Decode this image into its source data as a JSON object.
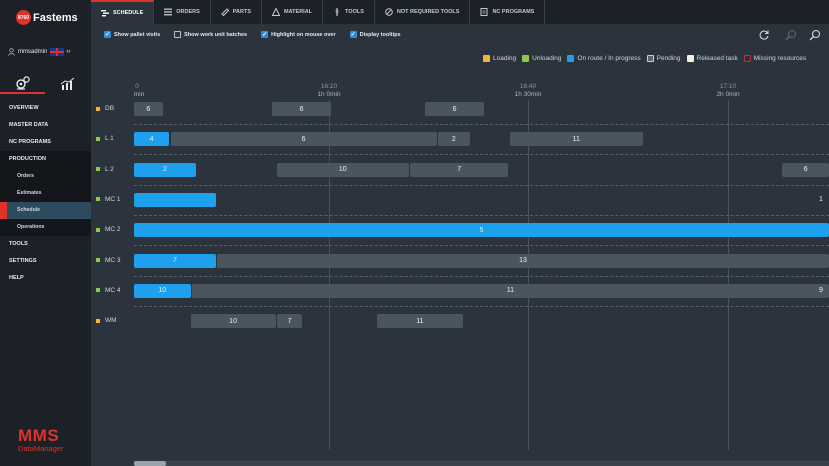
{
  "brand": {
    "badge": "8760",
    "name": "Fastems"
  },
  "user": {
    "name": "mmsadmin",
    "flag_arrow": "‹›"
  },
  "nav": {
    "overview": "OVERVIEW",
    "master_data": "MASTER DATA",
    "nc_programs": "NC PROGRAMS",
    "production": "PRODUCTION",
    "orders": "Orders",
    "estimates": "Estimates",
    "schedule": "Schedule",
    "operations": "Operations",
    "tools": "TOOLS",
    "settings": "SETTINGS",
    "help": "HELP"
  },
  "logo": {
    "big": "MMS",
    "small": "DataManager"
  },
  "tabs": [
    "SCHEDULE",
    "ORDERS",
    "PARTS",
    "MATERIAL",
    "TOOLS",
    "NOT REQUIRED TOOLS",
    "NC PROGRAMS"
  ],
  "options": {
    "show_pallet_visits": "Show pallet visits",
    "show_work_unit_batches": "Show work unit batches",
    "highlight_on_mouse_over": "Highlight on mouse over",
    "display_tooltips": "Display tooltips"
  },
  "legend": {
    "loading": "Loading",
    "unloading": "Unloading",
    "on_route": "On route / In progress",
    "pending": "Pending",
    "released": "Released task",
    "missing": "Missing resources"
  },
  "colors": {
    "loading": "#f2b53a",
    "unloading": "#8ec94c",
    "on_route": "#1ea0ec",
    "pending": "#7c8790",
    "released": "#f3efd9",
    "missing": "#c22e3a"
  },
  "timeline": {
    "start_label": "0",
    "start_dur": "min",
    "ticks": [
      {
        "time": "16:10",
        "dur": "1h 0min"
      },
      {
        "time": "16:40",
        "dur": "1h 30min"
      },
      {
        "time": "17:10",
        "dur": "2h 0min"
      }
    ]
  },
  "rows": [
    {
      "label": "DB",
      "dot": "#f2b53a",
      "bars": [
        {
          "text": "6",
          "kind": "grey",
          "start_min": 0,
          "end_min": 4.3
        },
        {
          "text": "6",
          "kind": "grey",
          "start_min": 20.7,
          "end_min": 29.7
        },
        {
          "text": "6",
          "kind": "grey",
          "start_min": 43.7,
          "end_min": 52.7
        }
      ]
    },
    {
      "label": "L 1",
      "dot": "#8ec94c",
      "bars": [
        {
          "text": "4",
          "kind": "blue",
          "start_min": 0,
          "end_min": 5.3
        },
        {
          "text": "6",
          "kind": "grey",
          "start_min": 5.5,
          "end_min": 45.5
        },
        {
          "text": "2",
          "kind": "grey",
          "start_min": 45.7,
          "end_min": 50.5
        },
        {
          "text": "11",
          "kind": "grey",
          "start_min": 56.5,
          "end_min": 76.5
        }
      ]
    },
    {
      "label": "L 2",
      "dot": "#8ec94c",
      "bars": [
        {
          "text": "2",
          "kind": "blue",
          "start_min": 0,
          "end_min": 9.3
        },
        {
          "text": "10",
          "kind": "grey",
          "start_min": 21.5,
          "end_min": 41.3
        },
        {
          "text": "7",
          "kind": "grey",
          "start_min": 41.5,
          "end_min": 56.3
        },
        {
          "text": "6",
          "kind": "grey",
          "start_min": 97.5,
          "end_min": 104.5
        }
      ]
    },
    {
      "label": "MC 1",
      "dot": "#8ec94c",
      "bars": [
        {
          "text": "",
          "kind": "blue",
          "start_min": 0,
          "end_min": 12.3
        },
        {
          "text": "1",
          "kind": "blue",
          "align": "right",
          "start_min": 12.5,
          "end_min": 104.5
        }
      ]
    },
    {
      "label": "MC 2",
      "dot": "#8ec94c",
      "bars": [
        {
          "text": "5",
          "kind": "blue",
          "start_min": 0,
          "end_min": 104.5
        }
      ]
    },
    {
      "label": "MC 3",
      "dot": "#8ec94c",
      "bars": [
        {
          "text": "7",
          "kind": "blue",
          "start_min": 0,
          "end_min": 12.3
        },
        {
          "text": "13",
          "kind": "grey",
          "start_min": 12.5,
          "end_min": 104.5
        }
      ]
    },
    {
      "label": "MC 4",
      "dot": "#8ec94c",
      "bars": [
        {
          "text": "10",
          "kind": "blue",
          "start_min": 0,
          "end_min": 8.5
        },
        {
          "text": "11",
          "kind": "grey",
          "start_min": 8.7,
          "end_min": 104.5
        },
        {
          "text": "9",
          "kind": "grey",
          "align": "right",
          "start_min": 8.7,
          "end_min": 104.5
        }
      ]
    },
    {
      "label": "WM",
      "dot": "#f2b53a",
      "bars": [
        {
          "text": "10",
          "kind": "grey",
          "start_min": 8.5,
          "end_min": 21.3
        },
        {
          "text": "7",
          "kind": "grey",
          "start_min": 21.5,
          "end_min": 25.3
        },
        {
          "text": "11",
          "kind": "grey",
          "start_min": 36.5,
          "end_min": 49.5
        }
      ]
    }
  ]
}
